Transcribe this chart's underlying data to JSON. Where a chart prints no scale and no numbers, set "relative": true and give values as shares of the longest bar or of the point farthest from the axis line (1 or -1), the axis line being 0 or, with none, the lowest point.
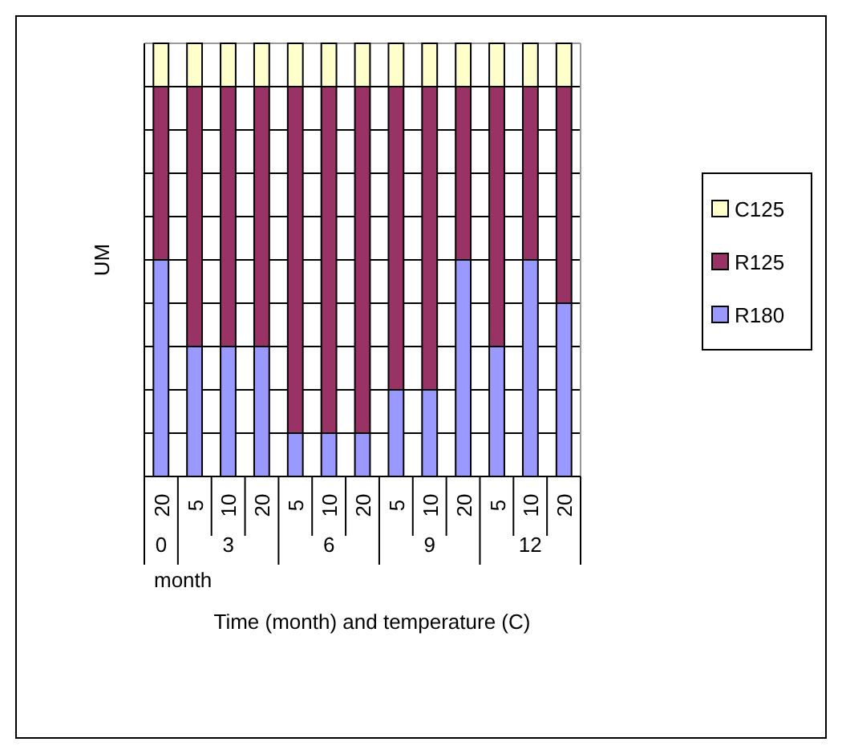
{
  "chart_data": {
    "type": "bar",
    "stacked": true,
    "relative": true,
    "ylabel": "UM",
    "xlabel": "Time (month) and temperature (C)",
    "categories": [
      "20",
      "5",
      "10",
      "20",
      "5",
      "10",
      "20",
      "5",
      "10",
      "20",
      "5",
      "10",
      "20"
    ],
    "series": [
      {
        "name": "R180",
        "color": "#9999ff",
        "values": [
          0.5,
          0.3,
          0.3,
          0.3,
          0.1,
          0.1,
          0.1,
          0.2,
          0.2,
          0.5,
          0.3,
          0.5,
          0.4
        ]
      },
      {
        "name": "R125",
        "color": "#993366",
        "values": [
          0.4,
          0.6,
          0.6,
          0.6,
          0.8,
          0.8,
          0.8,
          0.7,
          0.7,
          0.4,
          0.6,
          0.4,
          0.5
        ]
      },
      {
        "name": "C125",
        "color": "#ffffcc",
        "values": [
          0.1,
          0.1,
          0.1,
          0.1,
          0.1,
          0.1,
          0.1,
          0.1,
          0.1,
          0.1,
          0.1,
          0.1,
          0.1
        ]
      }
    ],
    "annotations": [
      "0",
      "3",
      "6",
      "9",
      "12",
      "month"
    ],
    "grid": true,
    "legend": "right"
  }
}
